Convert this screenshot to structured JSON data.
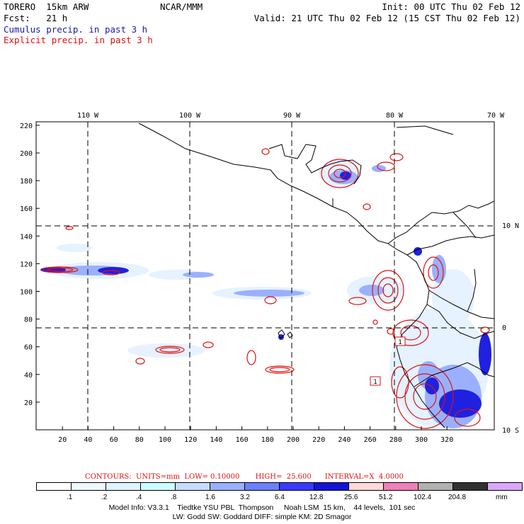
{
  "header": {
    "model": "TORERO  15km ARW",
    "center": "NCAR/MMM",
    "init": "Init: 00 UTC Thu 02 Feb 12",
    "fcst": "Fcst:   21 h",
    "valid": "Valid: 21 UTC Thu 02 Feb 12 (15 CST Thu 02 Feb 12)",
    "cumulus": "Cumulus precip. in past 3 h",
    "explicit": "Explicit precip. in past 3 h"
  },
  "map": {
    "lon_labels": [
      "110 W",
      "100 W",
      "90 W",
      "80 W",
      "70 W"
    ],
    "lat_labels": [
      "10 N",
      "0",
      "10 S"
    ],
    "x_ticks": [
      "20",
      "40",
      "60",
      "80",
      "100",
      "120",
      "140",
      "160",
      "180",
      "200",
      "220",
      "240",
      "260",
      "280",
      "300",
      "320"
    ],
    "y_ticks": [
      "20",
      "40",
      "60",
      "80",
      "100",
      "120",
      "140",
      "160",
      "180",
      "200",
      "220"
    ],
    "box_labels": [
      "1",
      "1"
    ]
  },
  "contours": {
    "text": "CONTOURS:  UNITS=mm  LOW= 0.10000       HIGH=  25.600      INTERVAL=X  4.0000"
  },
  "colorbar": {
    "colors": [
      "#ffffff",
      "#eef8ff",
      "#dff4ff",
      "#ccfcff",
      "#c6dcff",
      "#9ab0ff",
      "#6a80ff",
      "#3a3aff",
      "#1414d8",
      "#ffd8d8",
      "#f080b8",
      "#b0b0b0",
      "#303030",
      "#d8a8ff"
    ],
    "labels": [
      ".1",
      ".2",
      ".4",
      ".8",
      "1.6",
      "3.2",
      "6.4",
      "12.8",
      "25.6",
      "51.2",
      "102.4",
      "204.8"
    ],
    "unit": "mm"
  },
  "footer": {
    "line1": "Model Info: V3.3.1    Tiedtke YSU PBL  Thompson     Noah LSM  15 km,    44 levels,  101 sec",
    "line2": "LW: Godd SW: Goddard DIFF: simple KM: 2D Smagor"
  }
}
